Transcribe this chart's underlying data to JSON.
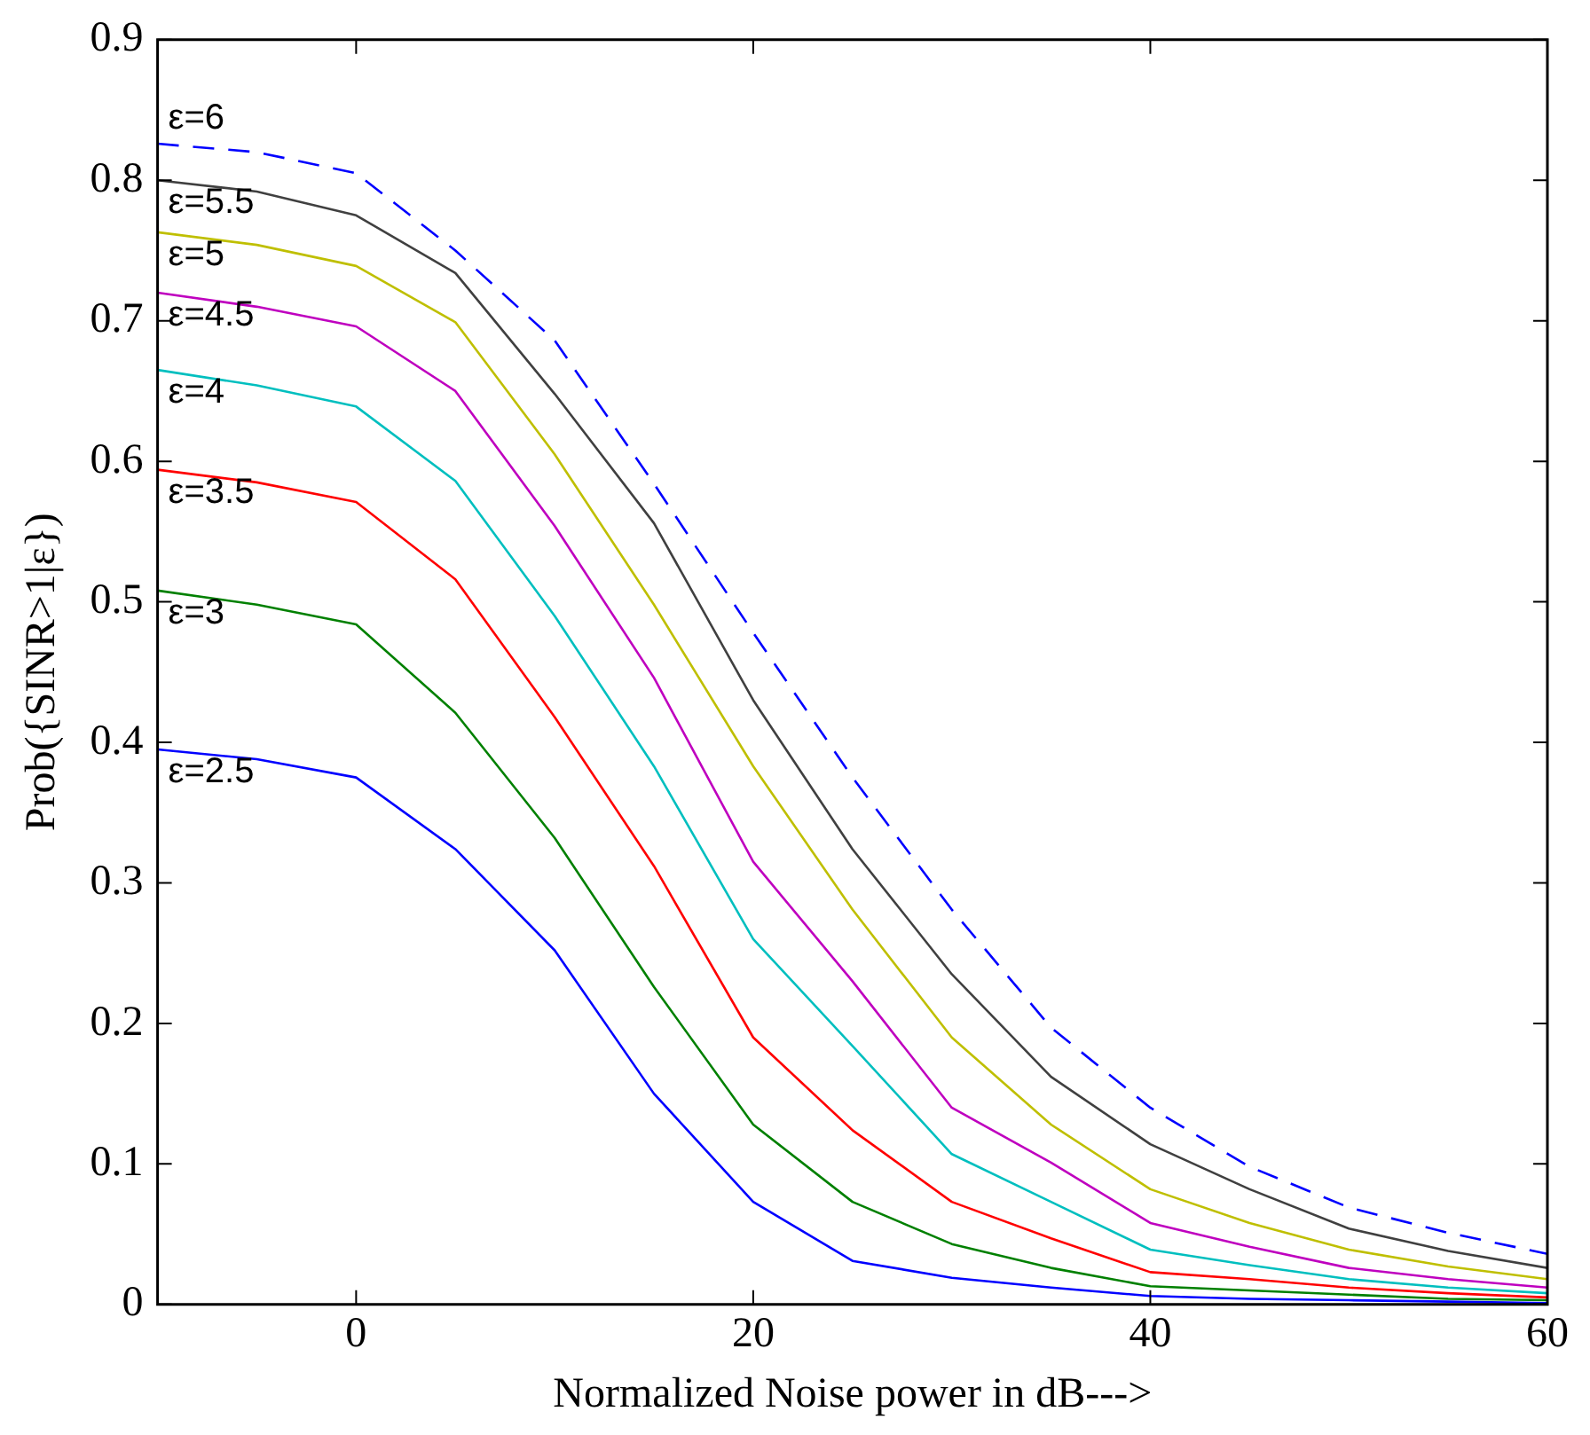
{
  "chart_data": {
    "type": "line",
    "xlabel": "Normalized Noise power in dB--->",
    "ylabel": "Prob({SINR>1|ε})",
    "x": [
      -10,
      -5,
      0,
      5,
      10,
      15,
      20,
      25,
      30,
      35,
      40,
      45,
      50,
      55,
      60
    ],
    "series": [
      {
        "name": "ε=6",
        "color": "#0000ff",
        "line_style": "dashed",
        "values": [
          0.826,
          0.82,
          0.805,
          0.75,
          0.686,
          0.584,
          0.478,
          0.375,
          0.281,
          0.197,
          0.14,
          0.098,
          0.069,
          0.051,
          0.036
        ]
      },
      {
        "name": "ε=5.5",
        "color": "#404040",
        "values": [
          0.8,
          0.792,
          0.775,
          0.734,
          0.648,
          0.556,
          0.43,
          0.324,
          0.235,
          0.162,
          0.114,
          0.082,
          0.054,
          0.038,
          0.026
        ]
      },
      {
        "name": "ε=5",
        "color": "#bfbf00",
        "values": [
          0.763,
          0.754,
          0.739,
          0.699,
          0.605,
          0.498,
          0.383,
          0.281,
          0.19,
          0.128,
          0.082,
          0.058,
          0.039,
          0.027,
          0.018
        ]
      },
      {
        "name": "ε=4.5",
        "color": "#bf00bf",
        "values": [
          0.72,
          0.71,
          0.696,
          0.65,
          0.554,
          0.446,
          0.315,
          0.23,
          0.14,
          0.101,
          0.058,
          0.041,
          0.026,
          0.018,
          0.012
        ]
      },
      {
        "name": "ε=4",
        "color": "#00bfbf",
        "values": [
          0.665,
          0.654,
          0.639,
          0.586,
          0.49,
          0.383,
          0.26,
          0.184,
          0.107,
          0.073,
          0.039,
          0.028,
          0.018,
          0.012,
          0.008
        ]
      },
      {
        "name": "ε=3.5",
        "color": "#ff0000",
        "values": [
          0.594,
          0.585,
          0.571,
          0.516,
          0.418,
          0.312,
          0.19,
          0.124,
          0.073,
          0.047,
          0.023,
          0.018,
          0.012,
          0.008,
          0.005
        ]
      },
      {
        "name": "ε=3",
        "color": "#008000",
        "values": [
          0.508,
          0.498,
          0.484,
          0.421,
          0.332,
          0.226,
          0.128,
          0.073,
          0.043,
          0.026,
          0.013,
          0.01,
          0.007,
          0.004,
          0.003
        ]
      },
      {
        "name": "ε=2.5",
        "color": "#0000ff",
        "values": [
          0.395,
          0.388,
          0.375,
          0.324,
          0.252,
          0.15,
          0.073,
          0.031,
          0.019,
          0.012,
          0.006,
          0.004,
          0.003,
          0.002,
          0.001
        ]
      }
    ],
    "xlim": [
      -10,
      60
    ],
    "xticks": [
      0,
      20,
      40,
      60
    ],
    "ylim": [
      0,
      0.9
    ],
    "yticks": [
      0,
      0.1,
      0.2,
      0.3,
      0.4,
      0.5,
      0.6,
      0.7,
      0.8,
      0.9
    ],
    "grid": false,
    "legend": false,
    "marker": "none"
  }
}
